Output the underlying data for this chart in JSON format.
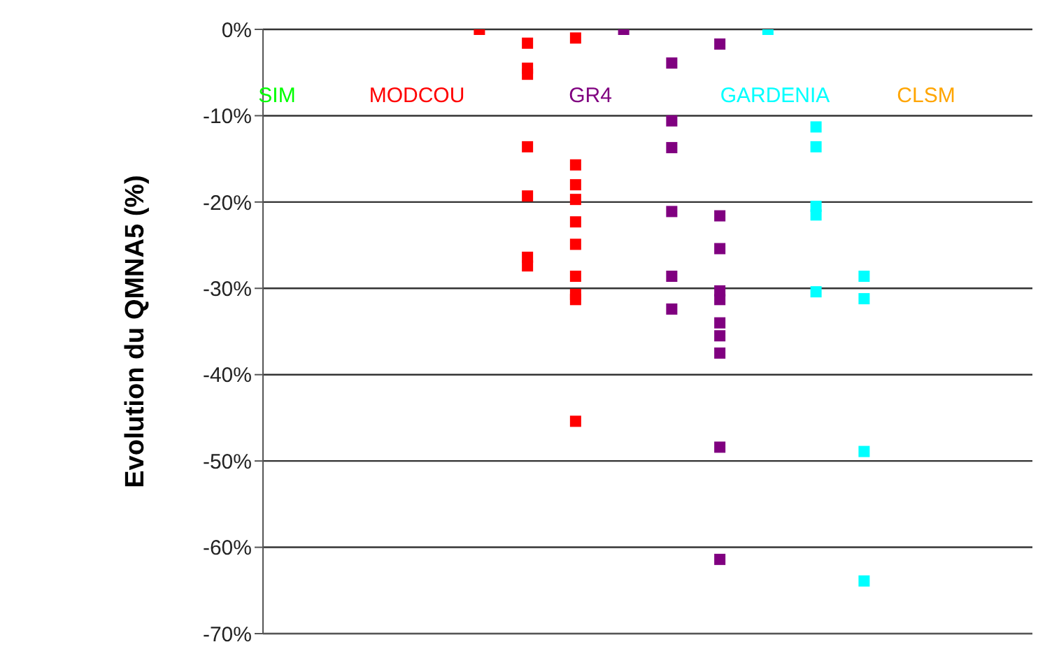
{
  "chart_data": {
    "type": "scatter",
    "ylabel": "Evolution du QMNA5 (%)",
    "categories": [
      null,
      null,
      null,
      null,
      null,
      null,
      null,
      null,
      null,
      null,
      null,
      null,
      null,
      null,
      null,
      null
    ],
    "tick_labels": "y",
    "ylim": [
      -70,
      0
    ],
    "yticks": [
      {
        "value": -70,
        "label": "-70%"
      },
      {
        "value": -60,
        "label": "-60%"
      },
      {
        "value": -50,
        "label": "-50%"
      },
      {
        "value": -40,
        "label": "-40%"
      },
      {
        "value": -30,
        "label": "-30%"
      },
      {
        "value": -20,
        "label": "-20%"
      },
      {
        "value": -10,
        "label": "-10%"
      },
      {
        "value": 0,
        "label": "0%"
      }
    ],
    "grid": "y",
    "marker": "square",
    "series": [
      {
        "name": "SIM",
        "color": "#00ff00",
        "values": [
          null,
          null,
          null,
          null,
          null,
          null,
          null,
          null,
          null,
          null,
          null,
          null,
          null,
          null,
          null,
          null
        ]
      },
      {
        "name": "MODCOU",
        "color": "#ff0000",
        "values": [
          null,
          null,
          null,
          null,
          0,
          -1.6,
          -1,
          null,
          null,
          null,
          null,
          null,
          null,
          null,
          null,
          null
        ]
      },
      {
        "color": "#ff0000",
        "values": [
          null,
          null,
          null,
          null,
          null,
          -4.5,
          -15.7,
          null,
          null,
          null,
          null,
          null,
          null,
          null,
          null,
          null
        ]
      },
      {
        "color": "#ff0000",
        "values": [
          null,
          null,
          null,
          null,
          null,
          -5.2,
          -18,
          null,
          null,
          null,
          null,
          null,
          null,
          null,
          null,
          null
        ]
      },
      {
        "color": "#ff0000",
        "values": [
          null,
          null,
          null,
          null,
          null,
          -13.6,
          -19.7,
          null,
          null,
          null,
          null,
          null,
          null,
          null,
          null,
          null
        ]
      },
      {
        "color": "#ff0000",
        "values": [
          null,
          null,
          null,
          null,
          null,
          -19.3,
          -22.3,
          null,
          null,
          null,
          null,
          null,
          null,
          null,
          null,
          null
        ]
      },
      {
        "color": "#ff0000",
        "values": [
          null,
          null,
          null,
          null,
          null,
          -26.4,
          -24.9,
          null,
          null,
          null,
          null,
          null,
          null,
          null,
          null,
          null
        ]
      },
      {
        "color": "#ff0000",
        "values": [
          null,
          null,
          null,
          null,
          null,
          -27.4,
          -28.6,
          null,
          null,
          null,
          null,
          null,
          null,
          null,
          null,
          null
        ]
      },
      {
        "color": "#ff0000",
        "values": [
          null,
          null,
          null,
          null,
          null,
          null,
          -30.7,
          null,
          null,
          null,
          null,
          null,
          null,
          null,
          null,
          null
        ]
      },
      {
        "color": "#ff0000",
        "values": [
          null,
          null,
          null,
          null,
          null,
          null,
          -31.3,
          null,
          null,
          null,
          null,
          null,
          null,
          null,
          null,
          null
        ]
      },
      {
        "color": "#ff0000",
        "values": [
          null,
          null,
          null,
          null,
          null,
          null,
          -45.4,
          null,
          null,
          null,
          null,
          null,
          null,
          null,
          null,
          null
        ]
      },
      {
        "name": "GR4",
        "color": "#800080",
        "values": [
          null,
          null,
          null,
          null,
          null,
          null,
          null,
          0,
          -3.9,
          -1.7,
          null,
          null,
          null,
          null,
          null,
          null
        ]
      },
      {
        "color": "#800080",
        "values": [
          null,
          null,
          null,
          null,
          null,
          null,
          null,
          null,
          -10.6,
          -21.6,
          null,
          null,
          null,
          null,
          null,
          null
        ]
      },
      {
        "color": "#800080",
        "values": [
          null,
          null,
          null,
          null,
          null,
          null,
          null,
          null,
          -13.7,
          -25.4,
          null,
          null,
          null,
          null,
          null,
          null
        ]
      },
      {
        "color": "#800080",
        "values": [
          null,
          null,
          null,
          null,
          null,
          null,
          null,
          null,
          -21.1,
          -30.3,
          null,
          null,
          null,
          null,
          null,
          null
        ]
      },
      {
        "color": "#800080",
        "values": [
          null,
          null,
          null,
          null,
          null,
          null,
          null,
          null,
          -28.6,
          -31.3,
          null,
          null,
          null,
          null,
          null,
          null
        ]
      },
      {
        "color": "#800080",
        "values": [
          null,
          null,
          null,
          null,
          null,
          null,
          null,
          null,
          -32.4,
          -34,
          null,
          null,
          null,
          null,
          null,
          null
        ]
      },
      {
        "color": "#800080",
        "values": [
          null,
          null,
          null,
          null,
          null,
          null,
          null,
          null,
          null,
          -35.5,
          null,
          null,
          null,
          null,
          null,
          null
        ]
      },
      {
        "color": "#800080",
        "values": [
          null,
          null,
          null,
          null,
          null,
          null,
          null,
          null,
          null,
          -37.5,
          null,
          null,
          null,
          null,
          null,
          null
        ]
      },
      {
        "color": "#800080",
        "values": [
          null,
          null,
          null,
          null,
          null,
          null,
          null,
          null,
          null,
          -48.4,
          null,
          null,
          null,
          null,
          null,
          null
        ]
      },
      {
        "color": "#800080",
        "values": [
          null,
          null,
          null,
          null,
          null,
          null,
          null,
          null,
          null,
          -61.4,
          null,
          null,
          null,
          null,
          null,
          null
        ]
      },
      {
        "name": "GARDENIA",
        "color": "#00ffff",
        "values": [
          null,
          null,
          null,
          null,
          null,
          null,
          null,
          null,
          null,
          null,
          0,
          -11.3,
          -28.6,
          null,
          null,
          null
        ]
      },
      {
        "color": "#00ffff",
        "values": [
          null,
          null,
          null,
          null,
          null,
          null,
          null,
          null,
          null,
          null,
          null,
          -13.6,
          -31.2,
          null,
          null,
          null
        ]
      },
      {
        "color": "#00ffff",
        "values": [
          null,
          null,
          null,
          null,
          null,
          null,
          null,
          null,
          null,
          null,
          null,
          -20.5,
          -48.9,
          null,
          null,
          null
        ]
      },
      {
        "color": "#00ffff",
        "values": [
          null,
          null,
          null,
          null,
          null,
          null,
          null,
          null,
          null,
          null,
          null,
          -21.5,
          -63.9,
          null,
          null,
          null
        ]
      },
      {
        "color": "#00ffff",
        "values": [
          null,
          null,
          null,
          null,
          null,
          null,
          null,
          null,
          null,
          null,
          null,
          -30.4,
          null,
          null,
          null,
          null
        ]
      },
      {
        "name": "CLSM",
        "color": "#ffa500",
        "values": [
          null,
          null,
          null,
          null,
          null,
          null,
          null,
          null,
          null,
          null,
          null,
          null,
          null,
          null,
          null,
          null
        ]
      }
    ]
  }
}
